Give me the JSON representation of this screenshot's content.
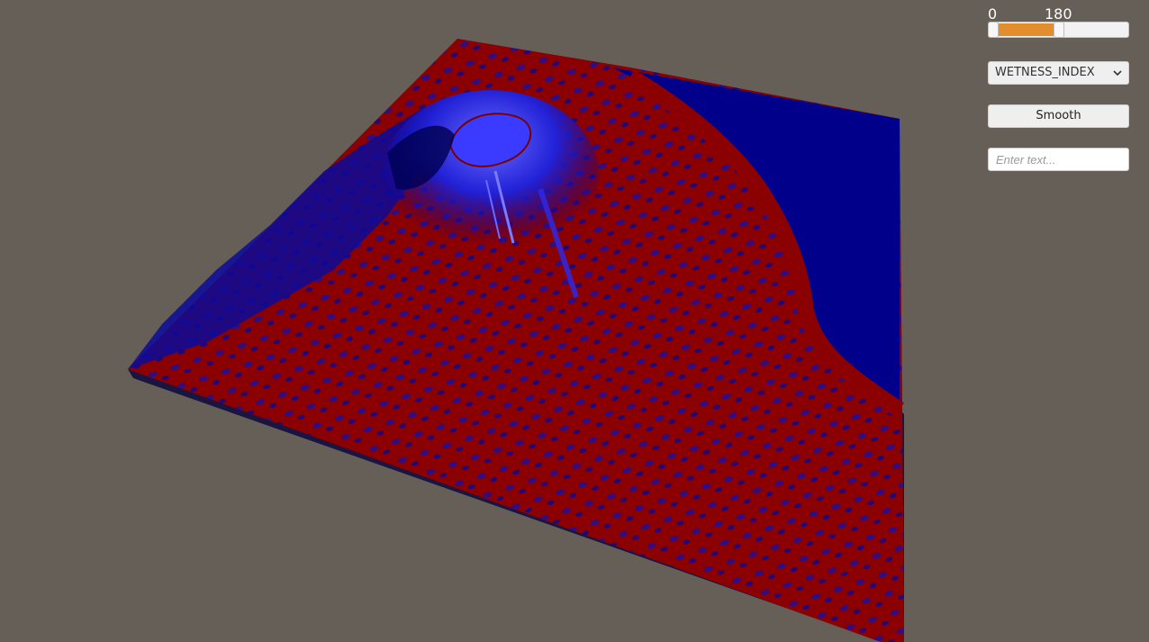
{
  "scene": {
    "background_color": "#665f58",
    "terrain_colors": {
      "low": "#8b0000",
      "high": "#00008b",
      "highlight": "#5050ff"
    }
  },
  "range_slider": {
    "min_label": "0",
    "max_label": "180",
    "fill_color": "#e28e2f"
  },
  "dropdown": {
    "selected": "WETNESS_INDEX",
    "icon": "chevron-down-icon"
  },
  "smooth_button": {
    "label": "Smooth"
  },
  "text_field": {
    "value": "",
    "placeholder": "Enter text..."
  }
}
